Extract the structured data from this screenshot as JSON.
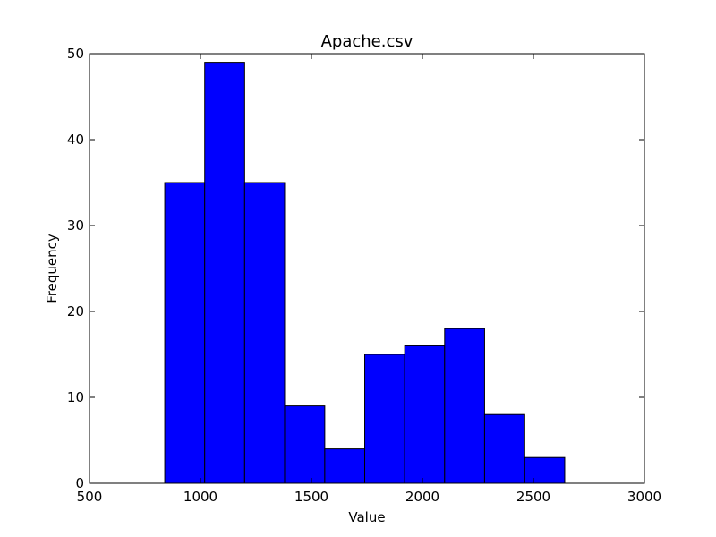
{
  "chart_data": {
    "type": "bar",
    "title": "Apache.csv",
    "xlabel": "Value",
    "ylabel": "Frequency",
    "xlim": [
      500,
      3000
    ],
    "ylim": [
      0,
      50
    ],
    "x_ticks": [
      500,
      1000,
      1500,
      2000,
      2500,
      3000
    ],
    "y_ticks": [
      0,
      10,
      20,
      30,
      40,
      50
    ],
    "grid": false,
    "bar_color": "#0000ff",
    "bins": [
      {
        "x0": 839,
        "x1": 1019,
        "count": 35
      },
      {
        "x0": 1019,
        "x1": 1199,
        "count": 49
      },
      {
        "x0": 1199,
        "x1": 1379,
        "count": 35
      },
      {
        "x0": 1379,
        "x1": 1560,
        "count": 9
      },
      {
        "x0": 1560,
        "x1": 1740,
        "count": 4
      },
      {
        "x0": 1740,
        "x1": 1920,
        "count": 15
      },
      {
        "x0": 1920,
        "x1": 2100,
        "count": 16
      },
      {
        "x0": 2100,
        "x1": 2280,
        "count": 18
      },
      {
        "x0": 2280,
        "x1": 2461,
        "count": 8
      },
      {
        "x0": 2461,
        "x1": 2641,
        "count": 3
      }
    ]
  }
}
